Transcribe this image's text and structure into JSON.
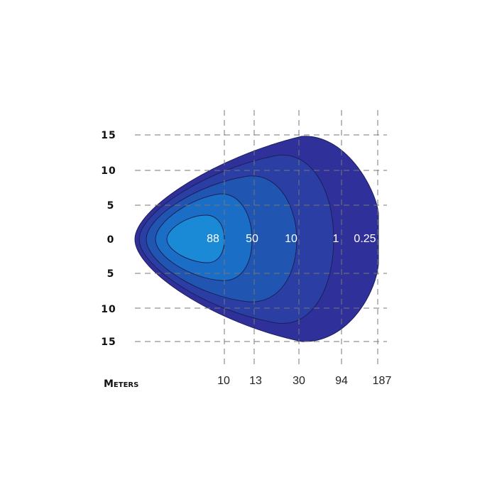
{
  "y_axis": {
    "labels": [
      "15",
      "10",
      "5",
      "0",
      "5",
      "10",
      "15"
    ]
  },
  "x_axis": {
    "title": "Meters",
    "labels": [
      "10",
      "13",
      "30",
      "94",
      "187"
    ]
  },
  "contours": [
    {
      "label": "88"
    },
    {
      "label": "50"
    },
    {
      "label": "10"
    },
    {
      "label": "1"
    },
    {
      "label": "0.25"
    }
  ]
}
